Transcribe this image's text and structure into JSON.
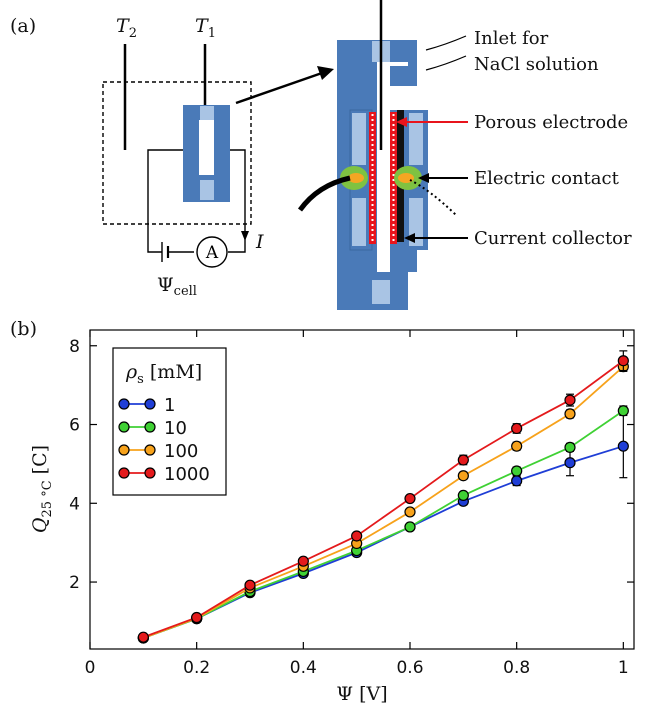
{
  "panel_a": {
    "label": "(a)",
    "t2": "T",
    "t2_sub": "2",
    "t1": "T",
    "t1_sub": "1",
    "ammeter": "A",
    "current": "I",
    "psi_cell": "Ψ",
    "psi_cell_sub": "cell",
    "annotations": {
      "inlet_line1": "Inlet for",
      "inlet_line2": "NaCl solution",
      "porous": "Porous electrode",
      "contact": "Electric contact",
      "collector": "Current collector"
    },
    "colors": {
      "cell_body": "#4a7ab8",
      "cell_light": "#a9c4e4",
      "porous_red": "#e8141c",
      "contact_green": "#7fc241",
      "contact_orange": "#f5a623"
    }
  },
  "panel_b": {
    "label": "(b)"
  },
  "chart_data": {
    "type": "line",
    "xlabel": "Ψ [V]",
    "ylabel": "Q",
    "ylabel_sub": "25 °C",
    "ylabel_unit": "[C]",
    "xlim": [
      0,
      1.02
    ],
    "ylim": [
      0.3,
      8.4
    ],
    "xticks": [
      "0",
      "0.2",
      "0.4",
      "0.6",
      "0.8",
      "1"
    ],
    "xtick_values": [
      0,
      0.2,
      0.4,
      0.6,
      0.8,
      1.0
    ],
    "yticks": [
      "2",
      "4",
      "6",
      "8"
    ],
    "ytick_values": [
      2,
      4,
      6,
      8
    ],
    "legend_title": "ρ",
    "legend_title_sub": "s",
    "legend_title_unit": "[mM]",
    "legend_position": "top-left",
    "x": [
      0.1,
      0.2,
      0.3,
      0.4,
      0.5,
      0.6,
      0.7,
      0.8,
      0.9,
      1.0
    ],
    "series": [
      {
        "name": "1",
        "color": "#1f3ed6",
        "values": [
          0.58,
          1.07,
          1.73,
          2.22,
          2.75,
          3.4,
          4.05,
          4.57,
          5.03,
          5.45
        ],
        "errors": [
          0.04,
          0.04,
          0.05,
          0.05,
          0.06,
          0.07,
          0.09,
          0.12,
          0.33,
          0.8
        ]
      },
      {
        "name": "10",
        "color": "#3fd134",
        "values": [
          0.58,
          1.07,
          1.76,
          2.27,
          2.8,
          3.4,
          4.2,
          4.82,
          5.42,
          6.35
        ],
        "errors": [
          0.04,
          0.04,
          0.05,
          0.05,
          0.06,
          0.07,
          0.09,
          0.1,
          0.1,
          0.12
        ]
      },
      {
        "name": "100",
        "color": "#f7a21b",
        "values": [
          0.58,
          1.08,
          1.85,
          2.4,
          2.98,
          3.78,
          4.7,
          5.45,
          6.27,
          7.47
        ],
        "errors": [
          0.04,
          0.04,
          0.05,
          0.06,
          0.07,
          0.08,
          0.09,
          0.1,
          0.1,
          0.12
        ]
      },
      {
        "name": "1000",
        "color": "#e41a1c",
        "values": [
          0.6,
          1.1,
          1.92,
          2.53,
          3.17,
          4.12,
          5.1,
          5.9,
          6.62,
          7.62
        ],
        "errors": [
          0.04,
          0.04,
          0.05,
          0.06,
          0.07,
          0.08,
          0.12,
          0.12,
          0.15,
          0.25
        ]
      }
    ]
  }
}
